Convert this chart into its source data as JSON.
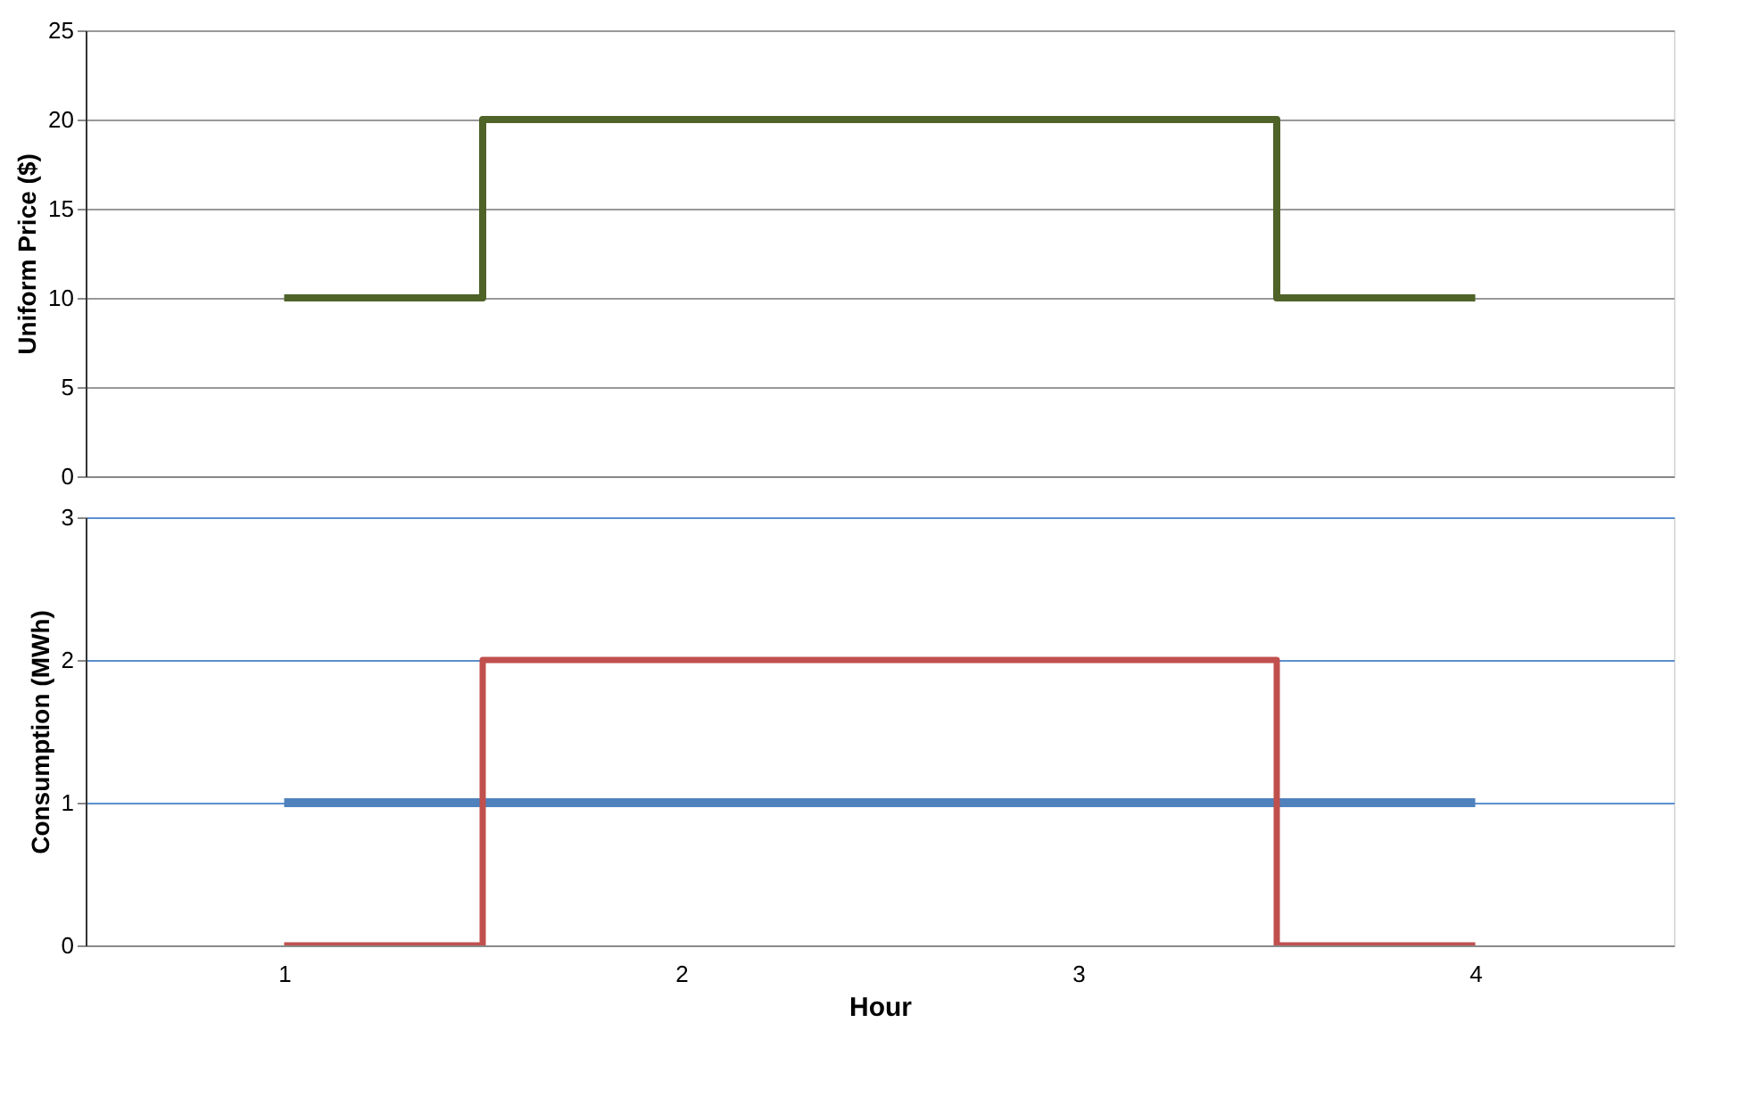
{
  "chart_data": [
    {
      "type": "step",
      "categories": [
        "1",
        "2",
        "3",
        "4"
      ],
      "values": [
        10,
        20,
        20,
        10
      ],
      "color": "#4f6228",
      "ylabel": "Uniform Price ($)",
      "ylim": [
        0,
        25
      ],
      "yticks": [
        0,
        5,
        10,
        15,
        20,
        25
      ],
      "grid": "y",
      "tick_labels": "y"
    },
    {
      "type": "step",
      "categories": [
        "1",
        "2",
        "3",
        "4"
      ],
      "series": [
        {
          "color": "#4f81bd",
          "values": [
            1,
            1,
            1,
            1
          ]
        },
        {
          "color": "#c0504d",
          "values": [
            0,
            2,
            2,
            0
          ]
        }
      ],
      "xlabel": "Hour",
      "ylabel": "Consumption (MWh)",
      "ylim": [
        0,
        3
      ],
      "yticks": [
        0,
        1,
        2,
        3
      ],
      "grid": "y"
    }
  ]
}
